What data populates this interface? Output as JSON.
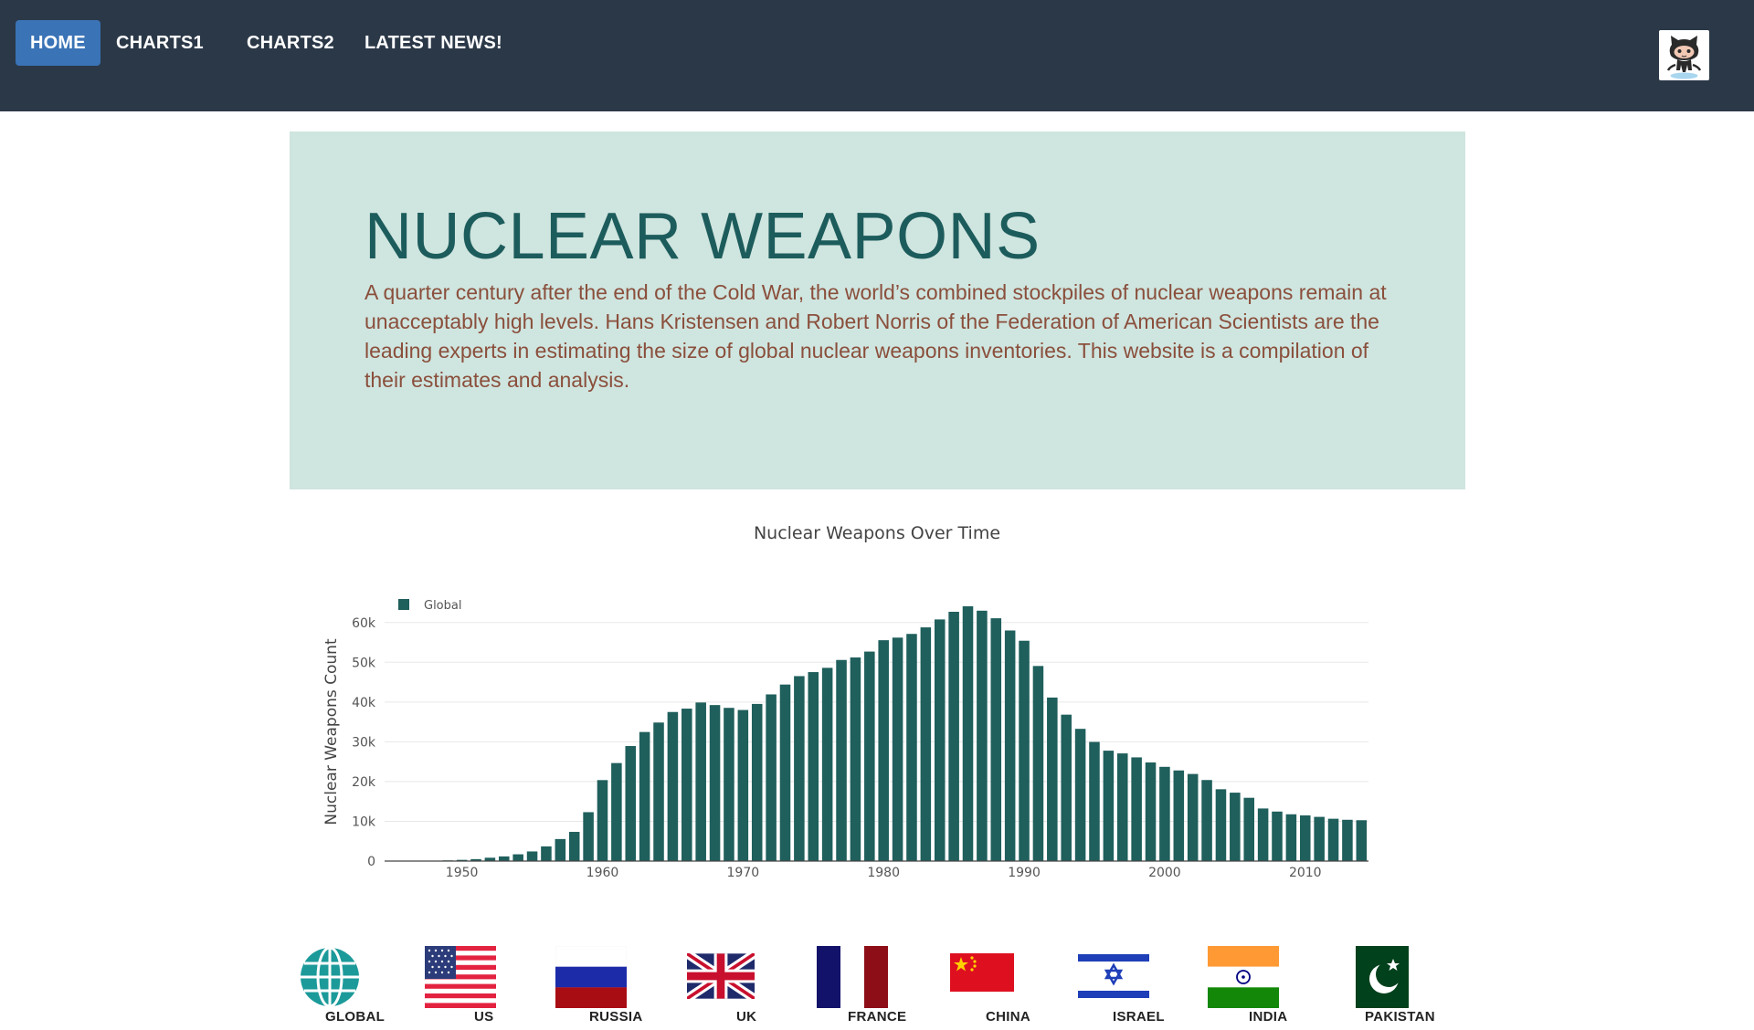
{
  "nav": {
    "home": "HOME",
    "charts1": "CHARTS1",
    "charts2": "CHARTS2",
    "news": "LATEST NEWS!",
    "github_icon": "github-octocat-icon"
  },
  "jumbotron": {
    "title": "NUCLEAR WEAPONS",
    "text": "A quarter century after the end of the Cold War, the world’s combined stockpiles of nuclear weapons remain at unacceptably high levels. Hans Kristensen and Robert Norris of the Federation of American Scientists are the leading experts in estimating the size of global nuclear weapons inventories. This website is a compilation of their estimates and analysis."
  },
  "colors": {
    "navbar": "#2b3848",
    "active_nav": "#3a73b6",
    "jumbotron": "#cfe5df",
    "title": "#1d5c5c",
    "text": "#8a4f3c",
    "bar": "#1f5f5c"
  },
  "chart_data": {
    "type": "bar",
    "title": "Nuclear Weapons Over Time",
    "xlabel": "",
    "ylabel": "Nuclear Weapons Count",
    "ylim": [
      0,
      65000
    ],
    "yticks": [
      0,
      10000,
      20000,
      30000,
      40000,
      50000,
      60000
    ],
    "ytick_labels": [
      "0",
      "10k",
      "20k",
      "30k",
      "40k",
      "50k",
      "60k"
    ],
    "xticks": [
      1950,
      1960,
      1970,
      1980,
      1990,
      2000,
      2010
    ],
    "grid": true,
    "legend": "top-left",
    "series": [
      {
        "name": "Global",
        "color": "#1f5f5c",
        "x": [
          1945,
          1946,
          1947,
          1948,
          1949,
          1950,
          1951,
          1952,
          1953,
          1954,
          1955,
          1956,
          1957,
          1958,
          1959,
          1960,
          1961,
          1962,
          1963,
          1964,
          1965,
          1966,
          1967,
          1968,
          1969,
          1970,
          1971,
          1972,
          1973,
          1974,
          1975,
          1976,
          1977,
          1978,
          1979,
          1980,
          1981,
          1982,
          1983,
          1984,
          1985,
          1986,
          1987,
          1988,
          1989,
          1990,
          1991,
          1992,
          1993,
          1994,
          1995,
          1996,
          1997,
          1998,
          1999,
          2000,
          2001,
          2002,
          2003,
          2004,
          2005,
          2006,
          2007,
          2008,
          2009,
          2010,
          2011,
          2012,
          2013,
          2014
        ],
        "values": [
          2,
          9,
          13,
          50,
          170,
          304,
          488,
          843,
          1169,
          1703,
          2422,
          3692,
          5543,
          7345,
          12298,
          20368,
          24656,
          28936,
          32468,
          34846,
          37496,
          38343,
          39888,
          39240,
          38536,
          38002,
          39526,
          41925,
          44403,
          46521,
          47532,
          48605,
          50587,
          51213,
          52695,
          55555,
          56206,
          57138,
          58785,
          60778,
          62706,
          64099,
          62978,
          61075,
          58000,
          55418,
          49071,
          41135,
          36826,
          33259,
          29969,
          27769,
          27080,
          26085,
          24804,
          23703,
          22796,
          21910,
          20386,
          18064,
          17210,
          15919,
          13229,
          12455,
          11769,
          11491,
          11120,
          10650,
          10386,
          10276
        ]
      }
    ]
  },
  "flags": [
    {
      "label": "GLOBAL",
      "icon": "globe-icon"
    },
    {
      "label": "US",
      "icon": "us-flag-icon"
    },
    {
      "label": "RUSSIA",
      "icon": "russia-flag-icon"
    },
    {
      "label": "UK",
      "icon": "uk-flag-icon"
    },
    {
      "label": "FRANCE",
      "icon": "france-flag-icon"
    },
    {
      "label": "CHINA",
      "icon": "china-flag-icon"
    },
    {
      "label": "ISRAEL",
      "icon": "israel-flag-icon"
    },
    {
      "label": "INDIA",
      "icon": "india-flag-icon"
    },
    {
      "label": "PAKISTAN",
      "icon": "pakistan-flag-icon"
    }
  ]
}
